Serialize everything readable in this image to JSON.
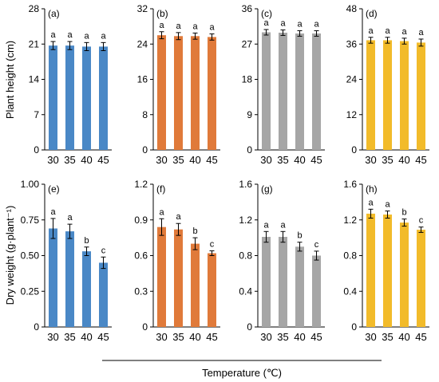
{
  "figure": {
    "ylabel_top": "Plant height (cm)",
    "ylabel_bottom": "Dry weight (g·plant⁻¹)",
    "xlabel": "Temperature (℃)",
    "colors": {
      "blue": "#4a88c6",
      "orange": "#e07a3a",
      "gray": "#a6a6a6",
      "yellow": "#f2bb2a"
    }
  },
  "chart_data": [
    {
      "panel": "(a)",
      "type": "bar",
      "row": "top",
      "categories": [
        "30",
        "35",
        "40",
        "45"
      ],
      "values": [
        20.7,
        20.7,
        20.5,
        20.5
      ],
      "errors": [
        0.8,
        0.8,
        0.8,
        0.8
      ],
      "letters": [
        "a",
        "a",
        "a",
        "a"
      ],
      "yticks": [
        "0",
        "7",
        "14",
        "21",
        "28"
      ],
      "ylim": [
        0,
        28
      ],
      "color": "#4a88c6"
    },
    {
      "panel": "(b)",
      "type": "bar",
      "row": "top",
      "categories": [
        "30",
        "35",
        "40",
        "45"
      ],
      "values": [
        26.0,
        25.8,
        25.8,
        25.6
      ],
      "errors": [
        0.8,
        0.8,
        0.7,
        0.7
      ],
      "letters": [
        "a",
        "a",
        "a",
        "a"
      ],
      "yticks": [
        "0",
        "8",
        "16",
        "24",
        "32"
      ],
      "ylim": [
        0,
        32
      ],
      "color": "#e07a3a"
    },
    {
      "panel": "(c)",
      "type": "bar",
      "row": "top",
      "categories": [
        "30",
        "35",
        "40",
        "45"
      ],
      "values": [
        30.0,
        29.9,
        29.7,
        29.7
      ],
      "errors": [
        0.7,
        0.7,
        0.7,
        0.7
      ],
      "letters": [
        "a",
        "a",
        "a",
        "a"
      ],
      "yticks": [
        "0",
        "9",
        "18",
        "27",
        "36"
      ],
      "ylim": [
        0,
        36
      ],
      "color": "#a6a6a6"
    },
    {
      "panel": "(d)",
      "type": "bar",
      "row": "top",
      "categories": [
        "30",
        "35",
        "40",
        "45"
      ],
      "values": [
        37.3,
        37.3,
        37.0,
        36.5
      ],
      "errors": [
        1.0,
        1.0,
        1.0,
        1.2
      ],
      "letters": [
        "a",
        "a",
        "a",
        "a"
      ],
      "yticks": [
        "0",
        "12",
        "24",
        "36",
        "48"
      ],
      "ylim": [
        0,
        48
      ],
      "color": "#f2bb2a"
    },
    {
      "panel": "(e)",
      "type": "bar",
      "row": "bottom",
      "categories": [
        "30",
        "35",
        "40",
        "45"
      ],
      "values": [
        0.69,
        0.67,
        0.53,
        0.45
      ],
      "errors": [
        0.07,
        0.05,
        0.03,
        0.04
      ],
      "letters": [
        "a",
        "a",
        "b",
        "c"
      ],
      "yticks": [
        "0",
        "0.25",
        "0.50",
        "0.75",
        "1.00"
      ],
      "ylim": [
        0,
        1.0
      ],
      "color": "#4a88c6"
    },
    {
      "panel": "(f)",
      "type": "bar",
      "row": "bottom",
      "categories": [
        "30",
        "35",
        "40",
        "45"
      ],
      "values": [
        0.84,
        0.82,
        0.7,
        0.62
      ],
      "errors": [
        0.07,
        0.05,
        0.05,
        0.02
      ],
      "letters": [
        "a",
        "a",
        "b",
        "c"
      ],
      "yticks": [
        "0",
        "0.3",
        "0.6",
        "0.9",
        "1.2"
      ],
      "ylim": [
        0,
        1.2
      ],
      "color": "#e07a3a"
    },
    {
      "panel": "(g)",
      "type": "bar",
      "row": "bottom",
      "categories": [
        "30",
        "35",
        "40",
        "45"
      ],
      "values": [
        1.01,
        1.01,
        0.9,
        0.8
      ],
      "errors": [
        0.06,
        0.06,
        0.05,
        0.05
      ],
      "letters": [
        "a",
        "a",
        "b",
        "c"
      ],
      "yticks": [
        "0",
        "0.4",
        "0.8",
        "1.2",
        "1.6"
      ],
      "ylim": [
        0,
        1.6
      ],
      "color": "#a6a6a6"
    },
    {
      "panel": "(h)",
      "type": "bar",
      "row": "bottom",
      "categories": [
        "30",
        "35",
        "40",
        "45"
      ],
      "values": [
        1.27,
        1.26,
        1.17,
        1.09
      ],
      "errors": [
        0.05,
        0.04,
        0.04,
        0.03
      ],
      "letters": [
        "a",
        "a",
        "b",
        "c"
      ],
      "yticks": [
        "0",
        "0.4",
        "0.8",
        "1.2",
        "1.6"
      ],
      "ylim": [
        0,
        1.6
      ],
      "color": "#f2bb2a"
    }
  ]
}
